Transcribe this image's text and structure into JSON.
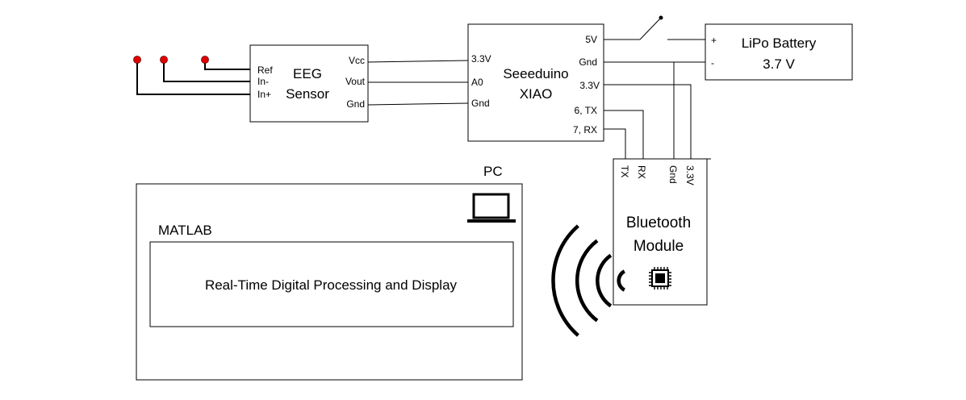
{
  "eeg_sensor": {
    "title_line1": "EEG",
    "title_line2": "Sensor",
    "pins_left": [
      "Ref",
      "In-",
      "In+"
    ],
    "pins_right": [
      "Vcc",
      "Vout",
      "Gnd"
    ]
  },
  "xiao": {
    "title_line1": "Seeeduino",
    "title_line2": "XIAO",
    "pins_left": [
      "3.3V",
      "A0",
      "Gnd"
    ],
    "pins_right": [
      "5V",
      "Gnd",
      "3.3V",
      "6, TX",
      "7, RX"
    ]
  },
  "battery": {
    "title": "LiPo Battery",
    "voltage": "3.7 V",
    "plus": "+",
    "minus": "-"
  },
  "bluetooth": {
    "title_line1": "Bluetooth",
    "title_line2": "Module",
    "pins": [
      "TX",
      "RX",
      "Gnd",
      "3.3V"
    ],
    "icon": "chip-icon"
  },
  "pc": {
    "label": "PC",
    "icon": "laptop-icon",
    "app_label": "MATLAB",
    "process_text": "Real-Time Digital Processing and Display"
  },
  "colors": {
    "electrode": "#e00000",
    "line": "#000000"
  }
}
